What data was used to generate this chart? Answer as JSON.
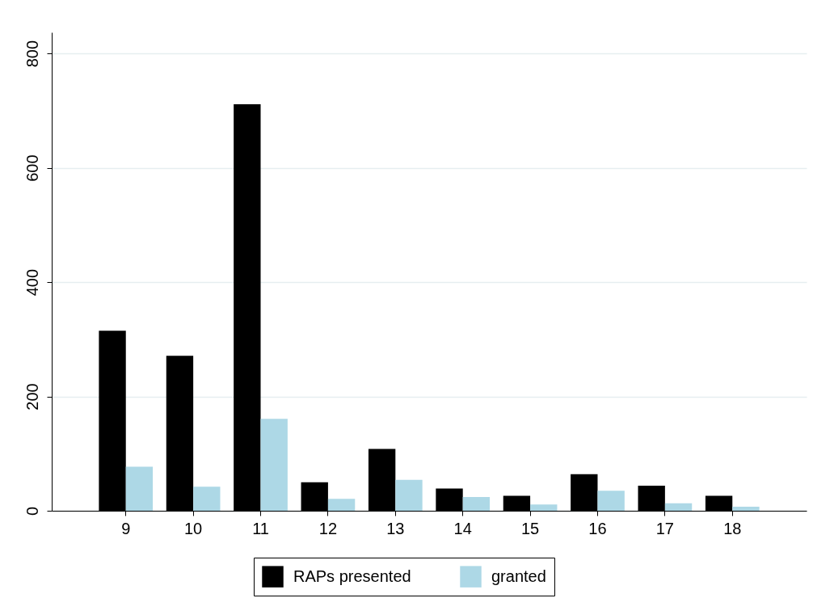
{
  "chart_data": {
    "type": "bar",
    "categories": [
      "9",
      "10",
      "11",
      "12",
      "13",
      "14",
      "15",
      "16",
      "17",
      "18"
    ],
    "series": [
      {
        "name": "RAPs presented",
        "color": "#000000",
        "values": [
          315,
          271,
          711,
          50,
          108,
          39,
          26,
          64,
          44,
          26
        ]
      },
      {
        "name": "granted",
        "color": "#add8e6",
        "values": [
          77,
          42,
          161,
          21,
          54,
          24,
          11,
          35,
          13,
          7
        ]
      }
    ],
    "ylim": [
      0,
      837
    ],
    "yticks": [
      0,
      200,
      400,
      600,
      800
    ],
    "grid": "y",
    "legend": "bottom"
  }
}
